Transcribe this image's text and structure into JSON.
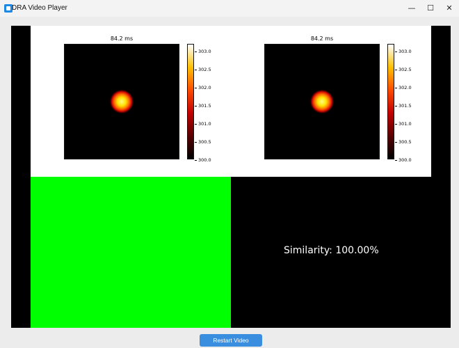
{
  "window": {
    "title": "DRA Video Player",
    "icon": "app-icon",
    "controls": {
      "minimize": "—",
      "maximize": "☐",
      "close": "✕"
    }
  },
  "video": {
    "left_plot": {
      "title": "84.2 ms",
      "colorbar_ticks": [
        "303.0",
        "302.5",
        "302.0",
        "301.5",
        "301.0",
        "300.5",
        "300.0"
      ],
      "colormap": "hot"
    },
    "right_plot": {
      "title": "84.2 ms",
      "colorbar_ticks": [
        "303.0",
        "302.5",
        "302.0",
        "301.5",
        "301.0",
        "300.5",
        "300.0"
      ],
      "colormap": "hot"
    },
    "mask_color": "#00ff00",
    "similarity": "Similarity:  100.00%"
  },
  "controls": {
    "restart_label": "Restart Video"
  },
  "colors": {
    "accent": "#3a8ee0"
  }
}
